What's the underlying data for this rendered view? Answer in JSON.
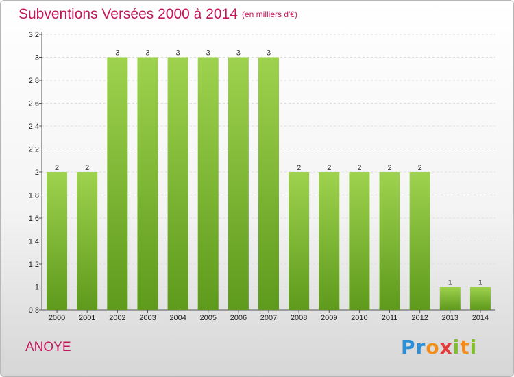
{
  "header": {
    "title": "Subventions Versées 2000 à 2014",
    "subtitle": "(en milliers d'€)"
  },
  "footer": {
    "commune": "ANOYE",
    "brand": "Proxiti"
  },
  "colors": {
    "title": "#c2185b",
    "bar_light": "#9ed24e",
    "bar_dark": "#5e9a1c"
  },
  "chart_data": {
    "type": "bar",
    "categories": [
      "2000",
      "2001",
      "2002",
      "2003",
      "2004",
      "2005",
      "2006",
      "2007",
      "2008",
      "2009",
      "2010",
      "2011",
      "2012",
      "2013",
      "2014"
    ],
    "values": [
      2,
      2,
      3,
      3,
      3,
      3,
      3,
      3,
      2,
      2,
      2,
      2,
      2,
      1,
      1
    ],
    "data_labels": [
      "2",
      "2",
      "3",
      "3",
      "3",
      "3",
      "3",
      "3",
      "2",
      "2",
      "2",
      "2",
      "2",
      "1",
      "1"
    ],
    "yticks": [
      0.8,
      1,
      1.2,
      1.4,
      1.6,
      1.8,
      2,
      2.2,
      2.4,
      2.6,
      2.8,
      3,
      3.2
    ],
    "ytick_labels": [
      "0.8",
      "1",
      "1.2",
      "1.4",
      "1.6",
      "1.8",
      "2",
      "2.2",
      "2.4",
      "2.6",
      "2.8",
      "3",
      "3.2"
    ],
    "ylim": [
      0.8,
      3.2
    ],
    "grid": "horizontal"
  }
}
